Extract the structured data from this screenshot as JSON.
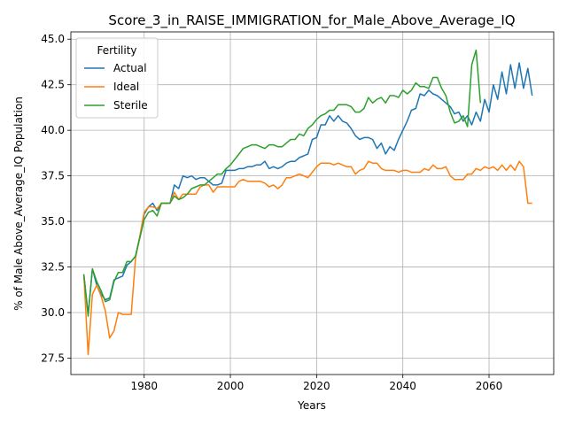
{
  "chart_data": {
    "type": "line",
    "title": "Score_3_in_RAISE_IMMIGRATION_for_Male_Above_Average_IQ",
    "xlabel": "Years",
    "ylabel": "% of Male Above_Average_IQ Population",
    "xlim": [
      1963,
      2075
    ],
    "ylim": [
      26.6,
      45.4
    ],
    "x_ticks": [
      1980,
      2000,
      2020,
      2040,
      2060
    ],
    "y_ticks": [
      27.5,
      30.0,
      32.5,
      35.0,
      37.5,
      40.0,
      42.5,
      45.0
    ],
    "x_tick_labels": [
      "1980",
      "2000",
      "2020",
      "2040",
      "2060"
    ],
    "y_tick_labels": [
      "27.5",
      "30.0",
      "32.5",
      "35.0",
      "37.5",
      "40.0",
      "42.5",
      "45.0"
    ],
    "grid": true,
    "legend": {
      "title": "Fertility",
      "position": "top-left"
    },
    "series": [
      {
        "name": "Actual",
        "color": "#1f77b4",
        "points": [
          [
            1966,
            32.1
          ],
          [
            1967,
            29.9
          ],
          [
            1968,
            32.4
          ],
          [
            1969,
            31.5
          ],
          [
            1970,
            31.0
          ],
          [
            1971,
            30.7
          ],
          [
            1972,
            30.8
          ],
          [
            1973,
            31.8
          ],
          [
            1974,
            31.9
          ],
          [
            1975,
            32.0
          ],
          [
            1976,
            32.6
          ],
          [
            1977,
            32.8
          ],
          [
            1978,
            33.1
          ],
          [
            1979,
            34.2
          ],
          [
            1980,
            35.4
          ],
          [
            1981,
            35.8
          ],
          [
            1982,
            36.0
          ],
          [
            1983,
            35.6
          ],
          [
            1984,
            36.0
          ],
          [
            1985,
            36.0
          ],
          [
            1986,
            36.0
          ],
          [
            1987,
            37.0
          ],
          [
            1988,
            36.8
          ],
          [
            1989,
            37.5
          ],
          [
            1990,
            37.4
          ],
          [
            1991,
            37.5
          ],
          [
            1992,
            37.3
          ],
          [
            1993,
            37.4
          ],
          [
            1994,
            37.4
          ],
          [
            1995,
            37.2
          ],
          [
            1996,
            37.0
          ],
          [
            1997,
            37.0
          ],
          [
            1998,
            37.1
          ],
          [
            1999,
            37.8
          ],
          [
            2000,
            37.8
          ],
          [
            2001,
            37.8
          ],
          [
            2002,
            37.9
          ],
          [
            2003,
            37.9
          ],
          [
            2004,
            38.0
          ],
          [
            2005,
            38.0
          ],
          [
            2006,
            38.1
          ],
          [
            2007,
            38.1
          ],
          [
            2008,
            38.3
          ],
          [
            2009,
            37.9
          ],
          [
            2010,
            38.0
          ],
          [
            2011,
            37.9
          ],
          [
            2012,
            38.0
          ],
          [
            2013,
            38.2
          ],
          [
            2014,
            38.3
          ],
          [
            2015,
            38.3
          ],
          [
            2016,
            38.5
          ],
          [
            2017,
            38.6
          ],
          [
            2018,
            38.7
          ],
          [
            2019,
            39.5
          ],
          [
            2020,
            39.6
          ],
          [
            2021,
            40.3
          ],
          [
            2022,
            40.3
          ],
          [
            2023,
            40.8
          ],
          [
            2024,
            40.5
          ],
          [
            2025,
            40.8
          ],
          [
            2026,
            40.5
          ],
          [
            2027,
            40.4
          ],
          [
            2028,
            40.1
          ],
          [
            2029,
            39.7
          ],
          [
            2030,
            39.5
          ],
          [
            2031,
            39.6
          ],
          [
            2032,
            39.6
          ],
          [
            2033,
            39.5
          ],
          [
            2034,
            39.0
          ],
          [
            2035,
            39.3
          ],
          [
            2036,
            38.7
          ],
          [
            2037,
            39.1
          ],
          [
            2038,
            38.9
          ],
          [
            2039,
            39.5
          ],
          [
            2040,
            40.0
          ],
          [
            2041,
            40.5
          ],
          [
            2042,
            41.1
          ],
          [
            2043,
            41.2
          ],
          [
            2044,
            42.0
          ],
          [
            2045,
            41.9
          ],
          [
            2046,
            42.2
          ],
          [
            2047,
            42.0
          ],
          [
            2048,
            41.9
          ],
          [
            2049,
            41.7
          ],
          [
            2050,
            41.5
          ],
          [
            2051,
            41.3
          ],
          [
            2052,
            40.9
          ],
          [
            2053,
            41.0
          ],
          [
            2054,
            40.5
          ],
          [
            2055,
            40.8
          ],
          [
            2056,
            40.3
          ],
          [
            2057,
            41.0
          ],
          [
            2058,
            40.5
          ],
          [
            2059,
            41.7
          ],
          [
            2060,
            41.0
          ],
          [
            2061,
            42.5
          ],
          [
            2062,
            41.7
          ],
          [
            2063,
            43.2
          ],
          [
            2064,
            42.0
          ],
          [
            2065,
            43.6
          ],
          [
            2066,
            42.3
          ],
          [
            2067,
            43.7
          ],
          [
            2068,
            42.3
          ],
          [
            2069,
            43.4
          ],
          [
            2070,
            41.9
          ]
        ]
      },
      {
        "name": "Ideal",
        "color": "#ff7f0e",
        "points": [
          [
            1966,
            32.1
          ],
          [
            1967,
            27.7
          ],
          [
            1968,
            31.0
          ],
          [
            1969,
            31.5
          ],
          [
            1970,
            30.9
          ],
          [
            1971,
            30.1
          ],
          [
            1972,
            28.6
          ],
          [
            1973,
            29.0
          ],
          [
            1974,
            30.0
          ],
          [
            1975,
            29.9
          ],
          [
            1976,
            29.9
          ],
          [
            1977,
            29.9
          ],
          [
            1978,
            33.0
          ],
          [
            1979,
            34.2
          ],
          [
            1980,
            35.5
          ],
          [
            1981,
            35.8
          ],
          [
            1982,
            35.8
          ],
          [
            1983,
            35.7
          ],
          [
            1984,
            36.0
          ],
          [
            1985,
            36.0
          ],
          [
            1986,
            36.0
          ],
          [
            1987,
            36.6
          ],
          [
            1988,
            36.2
          ],
          [
            1989,
            36.5
          ],
          [
            1990,
            36.5
          ],
          [
            1991,
            36.5
          ],
          [
            1992,
            36.5
          ],
          [
            1993,
            36.9
          ],
          [
            1994,
            37.0
          ],
          [
            1995,
            37.0
          ],
          [
            1996,
            36.6
          ],
          [
            1997,
            36.9
          ],
          [
            1998,
            36.9
          ],
          [
            1999,
            36.9
          ],
          [
            2000,
            36.9
          ],
          [
            2001,
            36.9
          ],
          [
            2002,
            37.2
          ],
          [
            2003,
            37.3
          ],
          [
            2004,
            37.2
          ],
          [
            2005,
            37.2
          ],
          [
            2006,
            37.2
          ],
          [
            2007,
            37.2
          ],
          [
            2008,
            37.1
          ],
          [
            2009,
            36.9
          ],
          [
            2010,
            37.0
          ],
          [
            2011,
            36.8
          ],
          [
            2012,
            37.0
          ],
          [
            2013,
            37.4
          ],
          [
            2014,
            37.4
          ],
          [
            2015,
            37.5
          ],
          [
            2016,
            37.6
          ],
          [
            2017,
            37.5
          ],
          [
            2018,
            37.4
          ],
          [
            2019,
            37.7
          ],
          [
            2020,
            38.0
          ],
          [
            2021,
            38.2
          ],
          [
            2022,
            38.2
          ],
          [
            2023,
            38.2
          ],
          [
            2024,
            38.1
          ],
          [
            2025,
            38.2
          ],
          [
            2026,
            38.1
          ],
          [
            2027,
            38.0
          ],
          [
            2028,
            38.0
          ],
          [
            2029,
            37.6
          ],
          [
            2030,
            37.8
          ],
          [
            2031,
            37.9
          ],
          [
            2032,
            38.3
          ],
          [
            2033,
            38.2
          ],
          [
            2034,
            38.2
          ],
          [
            2035,
            37.9
          ],
          [
            2036,
            37.8
          ],
          [
            2037,
            37.8
          ],
          [
            2038,
            37.8
          ],
          [
            2039,
            37.7
          ],
          [
            2040,
            37.8
          ],
          [
            2041,
            37.8
          ],
          [
            2042,
            37.7
          ],
          [
            2043,
            37.7
          ],
          [
            2044,
            37.7
          ],
          [
            2045,
            37.9
          ],
          [
            2046,
            37.8
          ],
          [
            2047,
            38.1
          ],
          [
            2048,
            37.9
          ],
          [
            2049,
            37.9
          ],
          [
            2050,
            38.0
          ],
          [
            2051,
            37.5
          ],
          [
            2052,
            37.3
          ],
          [
            2053,
            37.3
          ],
          [
            2054,
            37.3
          ],
          [
            2055,
            37.6
          ],
          [
            2056,
            37.6
          ],
          [
            2057,
            37.9
          ],
          [
            2058,
            37.8
          ],
          [
            2059,
            38.0
          ],
          [
            2060,
            37.9
          ],
          [
            2061,
            38.0
          ],
          [
            2062,
            37.8
          ],
          [
            2063,
            38.1
          ],
          [
            2064,
            37.8
          ],
          [
            2065,
            38.1
          ],
          [
            2066,
            37.8
          ],
          [
            2067,
            38.3
          ],
          [
            2068,
            38.0
          ],
          [
            2069,
            36.0
          ],
          [
            2070,
            36.0
          ]
        ]
      },
      {
        "name": "Sterile",
        "color": "#2ca02c",
        "points": [
          [
            1966,
            32.1
          ],
          [
            1967,
            29.8
          ],
          [
            1968,
            32.4
          ],
          [
            1969,
            31.7
          ],
          [
            1970,
            31.2
          ],
          [
            1971,
            30.6
          ],
          [
            1972,
            30.7
          ],
          [
            1973,
            31.7
          ],
          [
            1974,
            32.2
          ],
          [
            1975,
            32.2
          ],
          [
            1976,
            32.8
          ],
          [
            1977,
            32.8
          ],
          [
            1978,
            33.1
          ],
          [
            1979,
            34.1
          ],
          [
            1980,
            35.1
          ],
          [
            1981,
            35.5
          ],
          [
            1982,
            35.6
          ],
          [
            1983,
            35.3
          ],
          [
            1984,
            36.0
          ],
          [
            1985,
            36.0
          ],
          [
            1986,
            36.0
          ],
          [
            1987,
            36.4
          ],
          [
            1988,
            36.2
          ],
          [
            1989,
            36.3
          ],
          [
            1990,
            36.5
          ],
          [
            1991,
            36.8
          ],
          [
            1992,
            36.9
          ],
          [
            1993,
            37.0
          ],
          [
            1994,
            37.0
          ],
          [
            1995,
            37.2
          ],
          [
            1996,
            37.4
          ],
          [
            1997,
            37.6
          ],
          [
            1998,
            37.6
          ],
          [
            1999,
            37.9
          ],
          [
            2000,
            38.1
          ],
          [
            2001,
            38.4
          ],
          [
            2002,
            38.7
          ],
          [
            2003,
            39.0
          ],
          [
            2004,
            39.1
          ],
          [
            2005,
            39.2
          ],
          [
            2006,
            39.2
          ],
          [
            2007,
            39.1
          ],
          [
            2008,
            39.0
          ],
          [
            2009,
            39.2
          ],
          [
            2010,
            39.2
          ],
          [
            2011,
            39.1
          ],
          [
            2012,
            39.1
          ],
          [
            2013,
            39.3
          ],
          [
            2014,
            39.5
          ],
          [
            2015,
            39.5
          ],
          [
            2016,
            39.8
          ],
          [
            2017,
            39.7
          ],
          [
            2018,
            40.1
          ],
          [
            2019,
            40.3
          ],
          [
            2020,
            40.6
          ],
          [
            2021,
            40.8
          ],
          [
            2022,
            40.9
          ],
          [
            2023,
            41.1
          ],
          [
            2024,
            41.1
          ],
          [
            2025,
            41.4
          ],
          [
            2026,
            41.4
          ],
          [
            2027,
            41.4
          ],
          [
            2028,
            41.3
          ],
          [
            2029,
            41.0
          ],
          [
            2030,
            41.0
          ],
          [
            2031,
            41.2
          ],
          [
            2032,
            41.8
          ],
          [
            2033,
            41.5
          ],
          [
            2034,
            41.7
          ],
          [
            2035,
            41.8
          ],
          [
            2036,
            41.5
          ],
          [
            2037,
            41.9
          ],
          [
            2038,
            41.9
          ],
          [
            2039,
            41.8
          ],
          [
            2040,
            42.2
          ],
          [
            2041,
            42.0
          ],
          [
            2042,
            42.2
          ],
          [
            2043,
            42.6
          ],
          [
            2044,
            42.4
          ],
          [
            2045,
            42.4
          ],
          [
            2046,
            42.3
          ],
          [
            2047,
            42.9
          ],
          [
            2048,
            42.9
          ],
          [
            2049,
            42.3
          ],
          [
            2050,
            41.9
          ],
          [
            2051,
            41.0
          ],
          [
            2052,
            40.4
          ],
          [
            2053,
            40.5
          ],
          [
            2054,
            40.8
          ],
          [
            2055,
            40.2
          ],
          [
            2056,
            43.6
          ],
          [
            2057,
            44.4
          ],
          [
            2058,
            41.5
          ]
        ]
      }
    ]
  }
}
